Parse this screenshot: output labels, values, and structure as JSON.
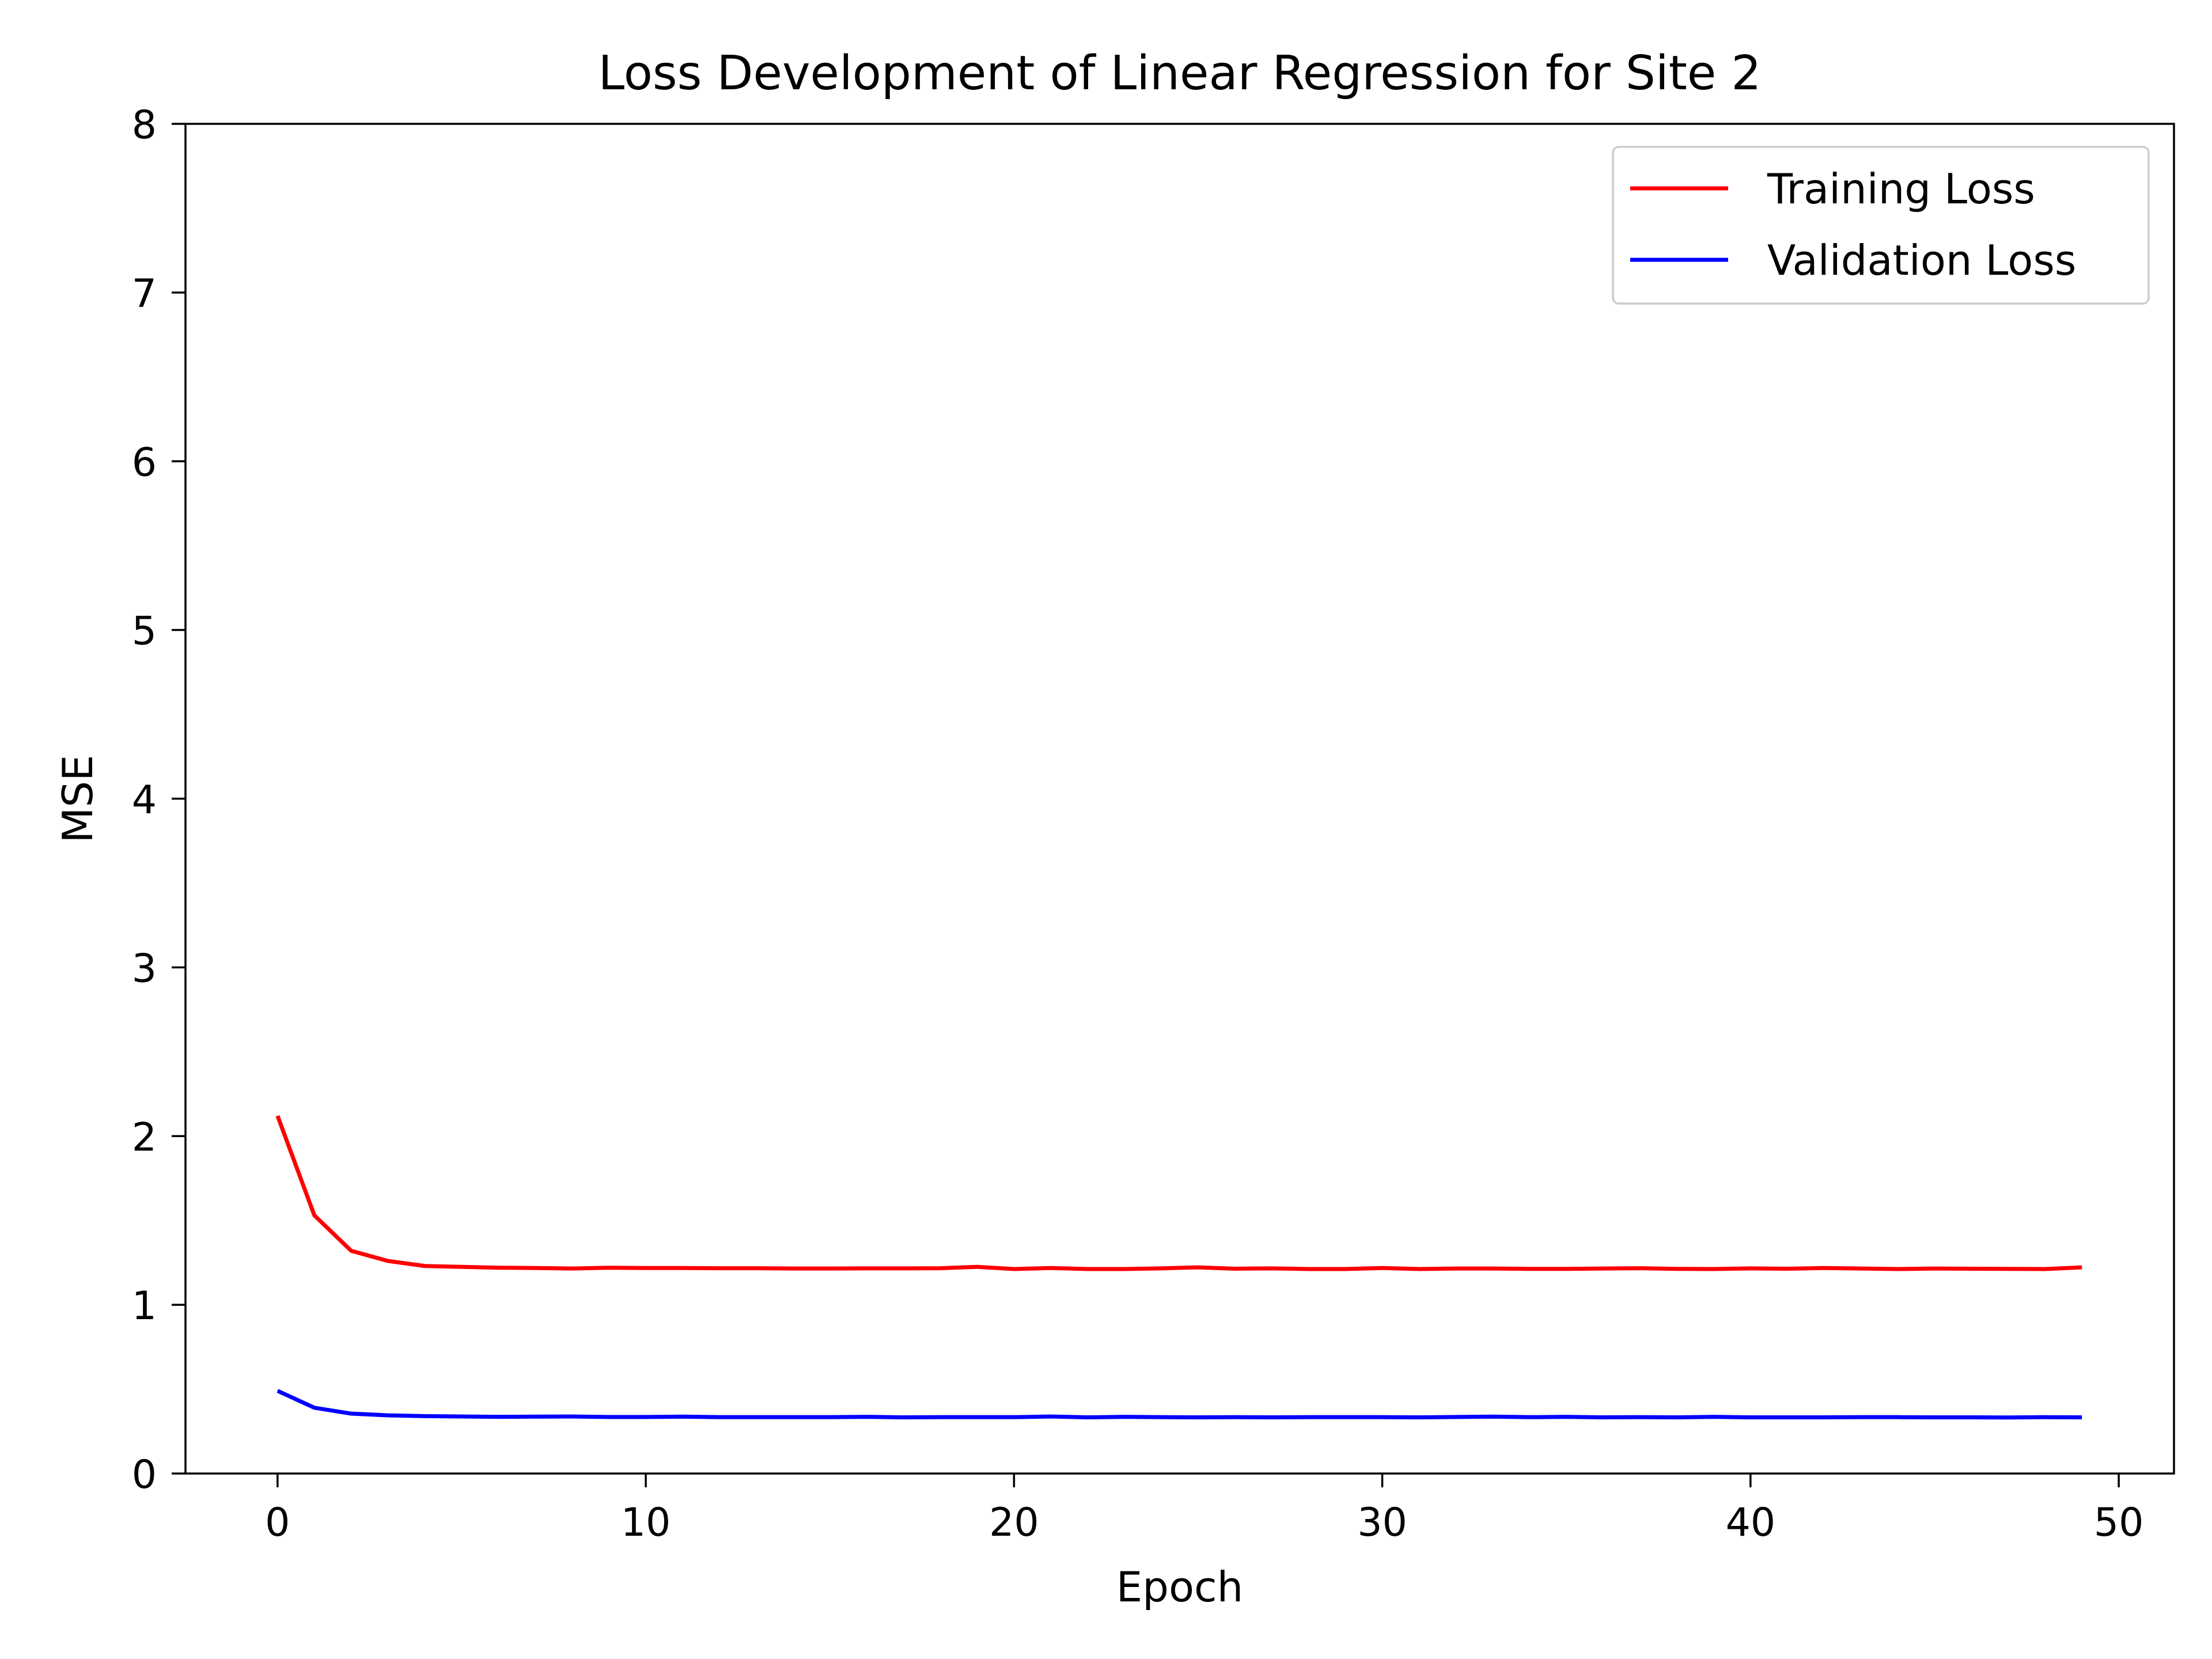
{
  "chart_data": {
    "type": "line",
    "title": "Loss Development of Linear Regression for Site 2",
    "xlabel": "Epoch",
    "ylabel": "MSE",
    "xlim": [
      -2.5,
      51.5
    ],
    "ylim": [
      0,
      8
    ],
    "x_ticks": [
      0,
      10,
      20,
      30,
      40,
      50
    ],
    "y_ticks": [
      0,
      1,
      2,
      3,
      4,
      5,
      6,
      7,
      8
    ],
    "grid": false,
    "legend_position": "top-right",
    "x": [
      0,
      1,
      2,
      3,
      4,
      5,
      6,
      7,
      8,
      9,
      10,
      11,
      12,
      13,
      14,
      15,
      16,
      17,
      18,
      19,
      20,
      21,
      22,
      23,
      24,
      25,
      26,
      27,
      28,
      29,
      30,
      31,
      32,
      33,
      34,
      35,
      36,
      37,
      38,
      39,
      40,
      41,
      42,
      43,
      44,
      45,
      46,
      47,
      48,
      49
    ],
    "series": [
      {
        "name": "Training Loss",
        "color": "#ff0000",
        "values": [
          2.12,
          1.53,
          1.32,
          1.26,
          1.23,
          1.225,
          1.22,
          1.218,
          1.215,
          1.22,
          1.218,
          1.218,
          1.217,
          1.217,
          1.215,
          1.215,
          1.216,
          1.216,
          1.217,
          1.225,
          1.212,
          1.218,
          1.212,
          1.212,
          1.216,
          1.222,
          1.214,
          1.216,
          1.212,
          1.212,
          1.218,
          1.212,
          1.215,
          1.215,
          1.213,
          1.213,
          1.215,
          1.217,
          1.213,
          1.212,
          1.216,
          1.214,
          1.218,
          1.215,
          1.212,
          1.215,
          1.214,
          1.213,
          1.212,
          1.222
        ]
      },
      {
        "name": "Validation Loss",
        "color": "#0000ff",
        "values": [
          0.49,
          0.39,
          0.355,
          0.345,
          0.34,
          0.338,
          0.336,
          0.337,
          0.338,
          0.335,
          0.335,
          0.337,
          0.334,
          0.334,
          0.334,
          0.334,
          0.336,
          0.333,
          0.334,
          0.334,
          0.334,
          0.338,
          0.333,
          0.336,
          0.334,
          0.333,
          0.334,
          0.333,
          0.334,
          0.334,
          0.334,
          0.333,
          0.335,
          0.337,
          0.334,
          0.336,
          0.333,
          0.334,
          0.333,
          0.336,
          0.333,
          0.333,
          0.333,
          0.334,
          0.334,
          0.333,
          0.333,
          0.332,
          0.334,
          0.333
        ]
      }
    ]
  }
}
